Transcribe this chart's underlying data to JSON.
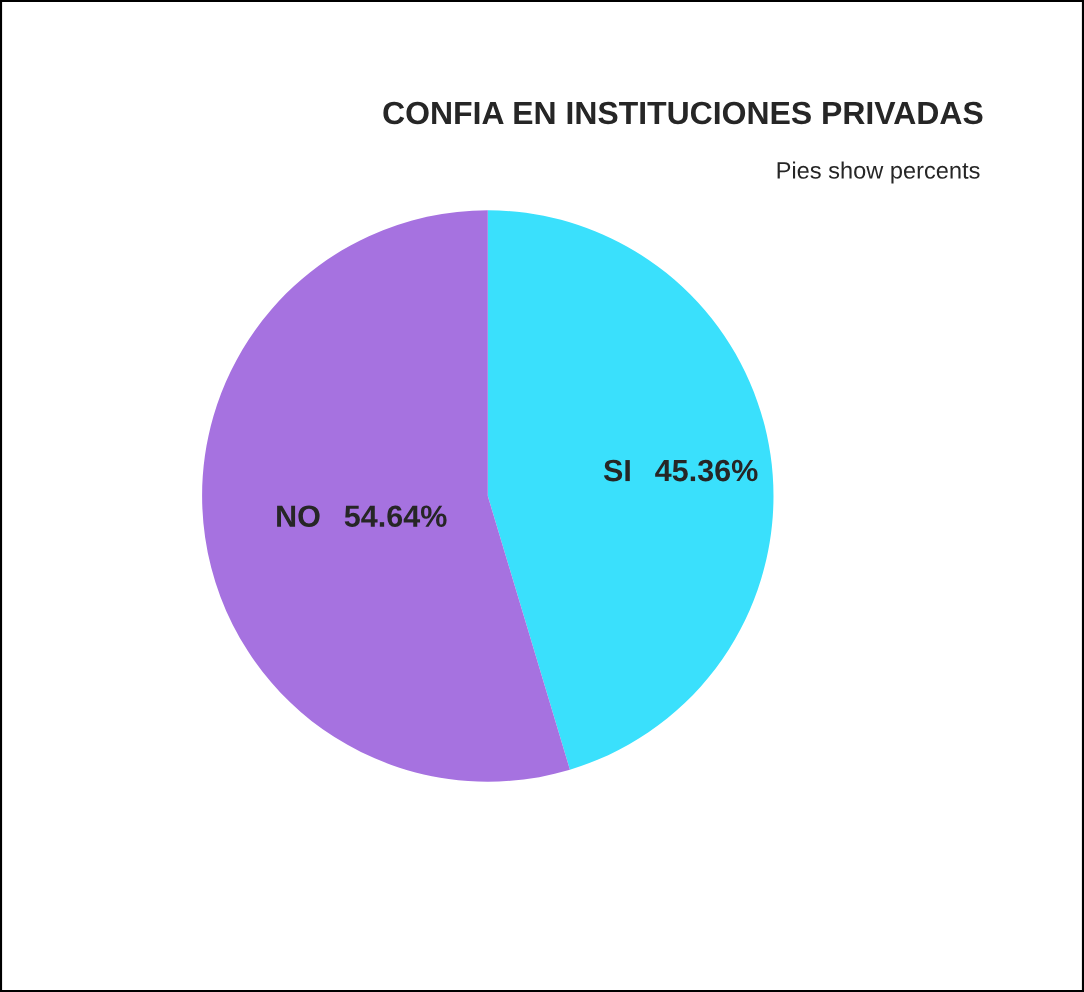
{
  "chart_data": {
    "type": "pie",
    "title": "CONFIA EN INSTITUCIONES PRIVADAS",
    "subtitle": "Pies show percents",
    "categories": [
      "SI",
      "NO"
    ],
    "values": [
      45.36,
      54.64
    ],
    "colors": [
      "#3ae0fc",
      "#a672e0"
    ],
    "value_labels": [
      "45.36%",
      "54.64%"
    ],
    "legend": false
  }
}
